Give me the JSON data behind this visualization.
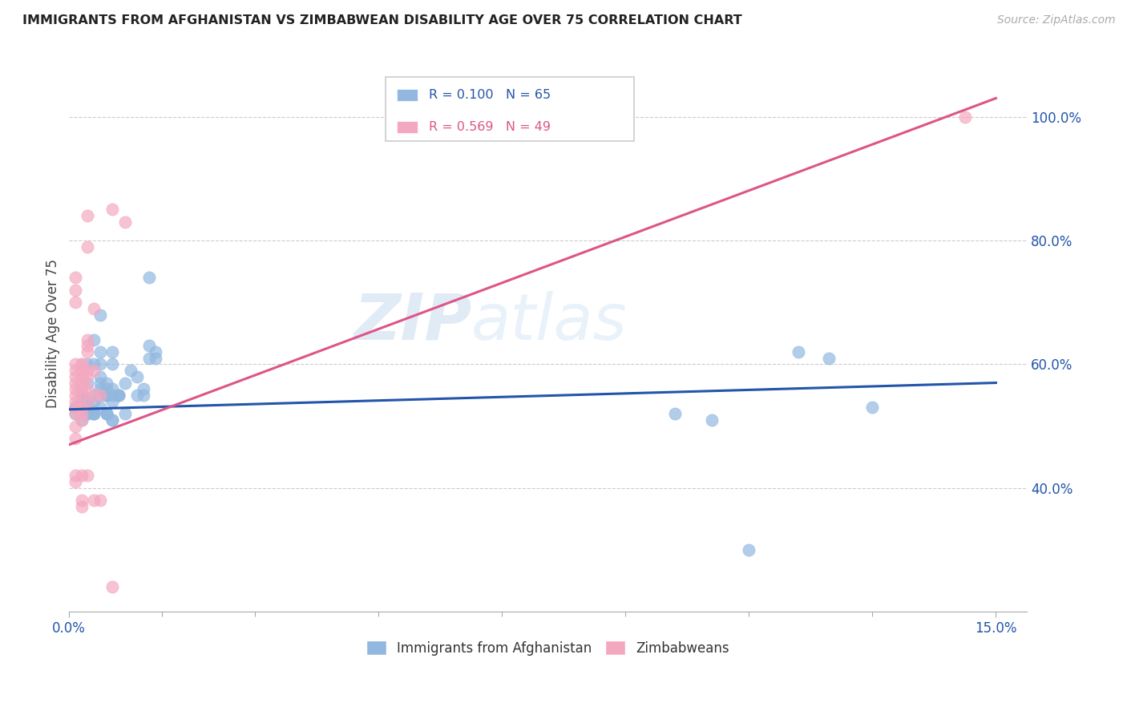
{
  "title": "IMMIGRANTS FROM AFGHANISTAN VS ZIMBABWEAN DISABILITY AGE OVER 75 CORRELATION CHART",
  "source": "Source: ZipAtlas.com",
  "ylabel": "Disability Age Over 75",
  "yticks": [
    0.4,
    0.6,
    0.8,
    1.0
  ],
  "ytick_labels": [
    "40.0%",
    "60.0%",
    "80.0%",
    "100.0%"
  ],
  "legend1_color": "#92b8e0",
  "legend2_color": "#f4a8c0",
  "legend1_label": "Immigrants from Afghanistan",
  "legend2_label": "Zimbabweans",
  "blue_line_color": "#2255aa",
  "pink_line_color": "#dd5588",
  "blue_text_color": "#2255aa",
  "pink_text_color": "#dd5588",
  "watermark": "ZIPatlas",
  "blue_scatter_x": [
    0.1,
    0.1,
    0.1,
    0.2,
    0.2,
    0.2,
    0.2,
    0.3,
    0.3,
    0.3,
    0.3,
    0.3,
    0.3,
    0.3,
    0.4,
    0.4,
    0.4,
    0.4,
    0.4,
    0.4,
    0.4,
    0.5,
    0.5,
    0.5,
    0.5,
    0.5,
    0.5,
    0.5,
    0.5,
    0.6,
    0.6,
    0.6,
    0.6,
    0.6,
    0.6,
    0.6,
    0.6,
    0.7,
    0.7,
    0.7,
    0.7,
    0.7,
    0.7,
    0.7,
    0.8,
    0.8,
    0.8,
    0.9,
    0.9,
    1.0,
    1.1,
    1.1,
    1.2,
    1.2,
    1.3,
    1.3,
    1.3,
    1.4,
    1.4,
    9.8,
    10.4,
    11.0,
    11.8,
    12.3,
    13.0
  ],
  "blue_scatter_y": [
    0.53,
    0.53,
    0.52,
    0.55,
    0.55,
    0.51,
    0.54,
    0.6,
    0.57,
    0.54,
    0.52,
    0.53,
    0.53,
    0.52,
    0.52,
    0.52,
    0.64,
    0.6,
    0.55,
    0.54,
    0.52,
    0.68,
    0.62,
    0.6,
    0.58,
    0.57,
    0.56,
    0.55,
    0.53,
    0.57,
    0.56,
    0.55,
    0.55,
    0.55,
    0.52,
    0.52,
    0.52,
    0.62,
    0.6,
    0.56,
    0.55,
    0.54,
    0.51,
    0.51,
    0.55,
    0.55,
    0.55,
    0.57,
    0.52,
    0.59,
    0.58,
    0.55,
    0.56,
    0.55,
    0.74,
    0.63,
    0.61,
    0.62,
    0.61,
    0.52,
    0.51,
    0.3,
    0.62,
    0.61,
    0.53
  ],
  "pink_scatter_x": [
    0.1,
    0.1,
    0.1,
    0.1,
    0.1,
    0.1,
    0.1,
    0.1,
    0.1,
    0.1,
    0.1,
    0.1,
    0.1,
    0.1,
    0.1,
    0.1,
    0.2,
    0.2,
    0.2,
    0.2,
    0.2,
    0.2,
    0.2,
    0.2,
    0.2,
    0.2,
    0.2,
    0.2,
    0.2,
    0.3,
    0.3,
    0.3,
    0.3,
    0.3,
    0.3,
    0.3,
    0.3,
    0.3,
    0.3,
    0.4,
    0.4,
    0.4,
    0.4,
    0.5,
    0.5,
    0.7,
    0.7,
    0.9,
    14.5
  ],
  "pink_scatter_y": [
    0.74,
    0.72,
    0.7,
    0.6,
    0.59,
    0.58,
    0.57,
    0.56,
    0.55,
    0.54,
    0.53,
    0.52,
    0.5,
    0.48,
    0.42,
    0.41,
    0.6,
    0.6,
    0.59,
    0.58,
    0.57,
    0.56,
    0.55,
    0.53,
    0.52,
    0.51,
    0.42,
    0.38,
    0.37,
    0.84,
    0.79,
    0.64,
    0.63,
    0.62,
    0.59,
    0.58,
    0.56,
    0.54,
    0.42,
    0.69,
    0.59,
    0.55,
    0.38,
    0.55,
    0.38,
    0.85,
    0.24,
    0.83,
    1.0
  ],
  "blue_trend_x": [
    0.0,
    15.0
  ],
  "blue_trend_y": [
    0.527,
    0.57
  ],
  "pink_trend_x": [
    0.0,
    15.0
  ],
  "pink_trend_y": [
    0.47,
    1.03
  ],
  "xlim": [
    0.0,
    15.5
  ],
  "ylim": [
    0.2,
    1.1
  ],
  "xticks": [
    0.0,
    15.0
  ],
  "xtick_labels": [
    "0.0%",
    "15.0%"
  ],
  "minor_xtick_positions": [
    1.5,
    3.0,
    5.0,
    7.0,
    9.0,
    11.0,
    13.0
  ]
}
